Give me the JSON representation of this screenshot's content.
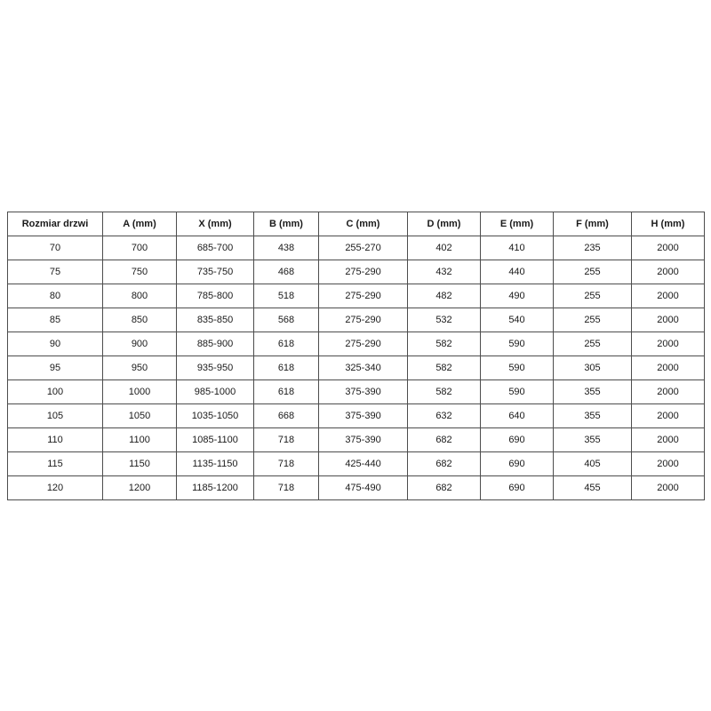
{
  "table": {
    "name": "door-size-dimensions",
    "border_color": "#4d4d4d",
    "columns": [
      "Rozmiar drzwi",
      "A (mm)",
      "X (mm)",
      "B (mm)",
      "C (mm)",
      "D (mm)",
      "E (mm)",
      "F (mm)",
      "H (mm)"
    ],
    "rows": [
      [
        "70",
        "700",
        "685-700",
        "438",
        "255-270",
        "402",
        "410",
        "235",
        "2000"
      ],
      [
        "75",
        "750",
        "735-750",
        "468",
        "275-290",
        "432",
        "440",
        "255",
        "2000"
      ],
      [
        "80",
        "800",
        "785-800",
        "518",
        "275-290",
        "482",
        "490",
        "255",
        "2000"
      ],
      [
        "85",
        "850",
        "835-850",
        "568",
        "275-290",
        "532",
        "540",
        "255",
        "2000"
      ],
      [
        "90",
        "900",
        "885-900",
        "618",
        "275-290",
        "582",
        "590",
        "255",
        "2000"
      ],
      [
        "95",
        "950",
        "935-950",
        "618",
        "325-340",
        "582",
        "590",
        "305",
        "2000"
      ],
      [
        "100",
        "1000",
        "985-1000",
        "618",
        "375-390",
        "582",
        "590",
        "355",
        "2000"
      ],
      [
        "105",
        "1050",
        "1035-1050",
        "668",
        "375-390",
        "632",
        "640",
        "355",
        "2000"
      ],
      [
        "110",
        "1100",
        "1085-1100",
        "718",
        "375-390",
        "682",
        "690",
        "355",
        "2000"
      ],
      [
        "115",
        "1150",
        "1135-1150",
        "718",
        "425-440",
        "682",
        "690",
        "405",
        "2000"
      ],
      [
        "120",
        "1200",
        "1185-1200",
        "718",
        "475-490",
        "682",
        "690",
        "455",
        "2000"
      ]
    ]
  }
}
